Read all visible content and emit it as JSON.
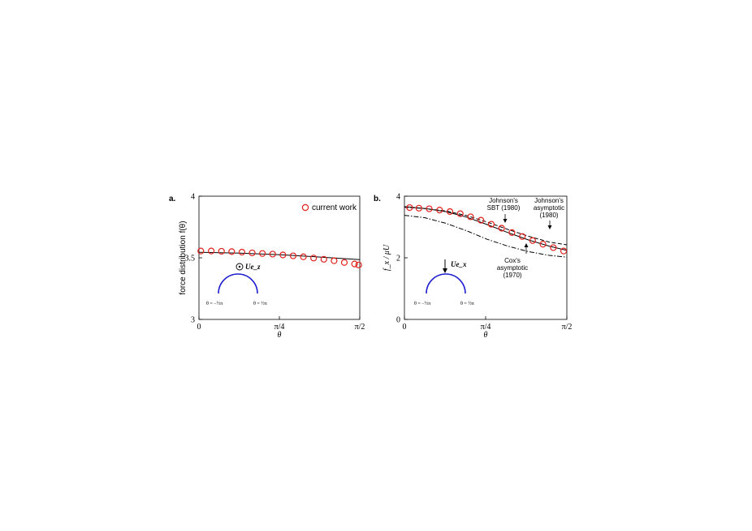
{
  "chart_data": [
    {
      "type": "scatter",
      "panel_label": "a.",
      "xlabel": "θ",
      "ylabel": "force distribution f(θ)",
      "xlim": [
        0,
        1.5708
      ],
      "ylim": [
        3,
        4
      ],
      "xticks": [
        {
          "v": 0,
          "label": "0"
        },
        {
          "v": 0.7854,
          "label": "π/4"
        },
        {
          "v": 1.5708,
          "label": "π/2"
        }
      ],
      "yticks": [
        {
          "v": 3,
          "label": "3"
        },
        {
          "v": 3.5,
          "label": "3.5"
        },
        {
          "v": 4,
          "label": "4"
        }
      ],
      "legend": {
        "label": "current work",
        "position": "top-right"
      },
      "series": [
        {
          "name": "current work",
          "kind": "markers",
          "color": "#e0201b",
          "x": [
            0.018,
            0.12,
            0.22,
            0.32,
            0.42,
            0.52,
            0.62,
            0.72,
            0.82,
            0.92,
            1.02,
            1.12,
            1.22,
            1.32,
            1.42,
            1.52,
            1.56
          ],
          "y": [
            3.555,
            3.555,
            3.553,
            3.55,
            3.546,
            3.54,
            3.535,
            3.53,
            3.523,
            3.516,
            3.508,
            3.498,
            3.488,
            3.476,
            3.462,
            3.45,
            3.442
          ]
        },
        {
          "kind": "line",
          "style": "solid",
          "color": "#000000",
          "x": [
            0,
            0.4,
            0.8,
            1.2,
            1.5708
          ],
          "y": [
            3.545,
            3.538,
            3.525,
            3.505,
            3.485
          ]
        }
      ],
      "inset": {
        "arrow_label": "Ue_z",
        "left_label": "θ = −½π",
        "right_label": "θ = ½π",
        "arc_color": "#1c1ccf"
      }
    },
    {
      "type": "scatter",
      "panel_label": "b.",
      "xlabel": "θ",
      "ylabel": "f_x / μU",
      "xlim": [
        0,
        1.5708
      ],
      "ylim": [
        0,
        4
      ],
      "xticks": [
        {
          "v": 0,
          "label": "0"
        },
        {
          "v": 0.7854,
          "label": "π/4"
        },
        {
          "v": 1.5708,
          "label": "π/2"
        }
      ],
      "yticks": [
        {
          "v": 0,
          "label": "0"
        },
        {
          "v": 2,
          "label": "2"
        },
        {
          "v": 4,
          "label": "4"
        }
      ],
      "series": [
        {
          "name": "current work",
          "kind": "markers",
          "color": "#e0201b",
          "x": [
            0.05,
            0.14,
            0.24,
            0.34,
            0.44,
            0.54,
            0.64,
            0.74,
            0.84,
            0.94,
            1.04,
            1.14,
            1.24,
            1.34,
            1.44,
            1.54
          ],
          "y": [
            3.63,
            3.61,
            3.59,
            3.55,
            3.5,
            3.43,
            3.33,
            3.22,
            3.09,
            2.96,
            2.82,
            2.69,
            2.56,
            2.44,
            2.33,
            2.22
          ]
        },
        {
          "kind": "line",
          "style": "solid",
          "color": "#000000",
          "x": [
            0,
            0.2,
            0.4,
            0.6,
            0.8,
            1.0,
            1.2,
            1.4,
            1.5708
          ],
          "y": [
            3.66,
            3.6,
            3.5,
            3.32,
            3.08,
            2.82,
            2.58,
            2.38,
            2.24
          ]
        },
        {
          "kind": "line",
          "style": "dashed",
          "color": "#000000",
          "x": [
            0,
            0.2,
            0.4,
            0.6,
            0.8,
            1.0,
            1.2,
            1.4,
            1.5708
          ],
          "y": [
            3.64,
            3.6,
            3.52,
            3.37,
            3.16,
            2.92,
            2.7,
            2.51,
            2.42
          ]
        },
        {
          "kind": "line",
          "style": "dashdot",
          "color": "#000000",
          "x": [
            0,
            0.2,
            0.4,
            0.6,
            0.8,
            1.0,
            1.2,
            1.4,
            1.5708
          ],
          "y": [
            3.38,
            3.3,
            3.12,
            2.88,
            2.6,
            2.38,
            2.2,
            2.08,
            2.02
          ]
        }
      ],
      "annotations": [
        {
          "lines": [
            "Johnson's",
            "SBT (1980)"
          ],
          "x": 0.98,
          "y": 3.1
        },
        {
          "lines": [
            "Johnson's",
            "asymptotic",
            "(1980)"
          ],
          "x": 1.41,
          "y": 2.55
        },
        {
          "lines": [
            "Cox's",
            "asymptotic",
            "(1970)"
          ],
          "x": 1.2,
          "y": 2.28
        }
      ],
      "inset": {
        "arrow_label": "Ue_x",
        "left_label": "θ = −½π",
        "right_label": "θ = ½π",
        "arc_color": "#1c1ccf"
      }
    }
  ]
}
